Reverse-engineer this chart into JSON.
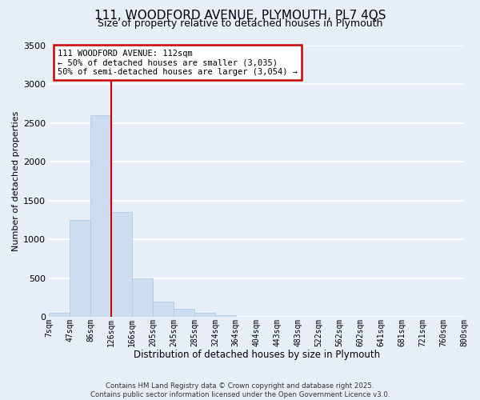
{
  "title": "111, WOODFORD AVENUE, PLYMOUTH, PL7 4QS",
  "subtitle": "Size of property relative to detached houses in Plymouth",
  "bar_values": [
    50,
    1250,
    2600,
    1350,
    500,
    200,
    110,
    50,
    20,
    5,
    2,
    1,
    0,
    0,
    0,
    0,
    0,
    0,
    0,
    0
  ],
  "bin_labels": [
    "7sqm",
    "47sqm",
    "86sqm",
    "126sqm",
    "166sqm",
    "205sqm",
    "245sqm",
    "285sqm",
    "324sqm",
    "364sqm",
    "404sqm",
    "443sqm",
    "483sqm",
    "522sqm",
    "562sqm",
    "602sqm",
    "641sqm",
    "681sqm",
    "721sqm",
    "760sqm",
    "800sqm"
  ],
  "bar_color": "#ccddf0",
  "bar_edge_color": "#a8c8e8",
  "ylim": [
    0,
    3500
  ],
  "yticks": [
    0,
    500,
    1000,
    1500,
    2000,
    2500,
    3000,
    3500
  ],
  "xlabel": "Distribution of detached houses by size in Plymouth",
  "ylabel": "Number of detached properties",
  "property_line_bin": 2,
  "annotation_title": "111 WOODFORD AVENUE: 112sqm",
  "annotation_line1": "← 50% of detached houses are smaller (3,035)",
  "annotation_line2": "50% of semi-detached houses are larger (3,054) →",
  "annotation_box_color": "#ffffff",
  "annotation_box_edge_color": "#cc0000",
  "line_color": "#cc0000",
  "footer1": "Contains HM Land Registry data © Crown copyright and database right 2025.",
  "footer2": "Contains public sector information licensed under the Open Government Licence v3.0.",
  "background_color": "#e8eef8",
  "grid_color": "#ffffff"
}
